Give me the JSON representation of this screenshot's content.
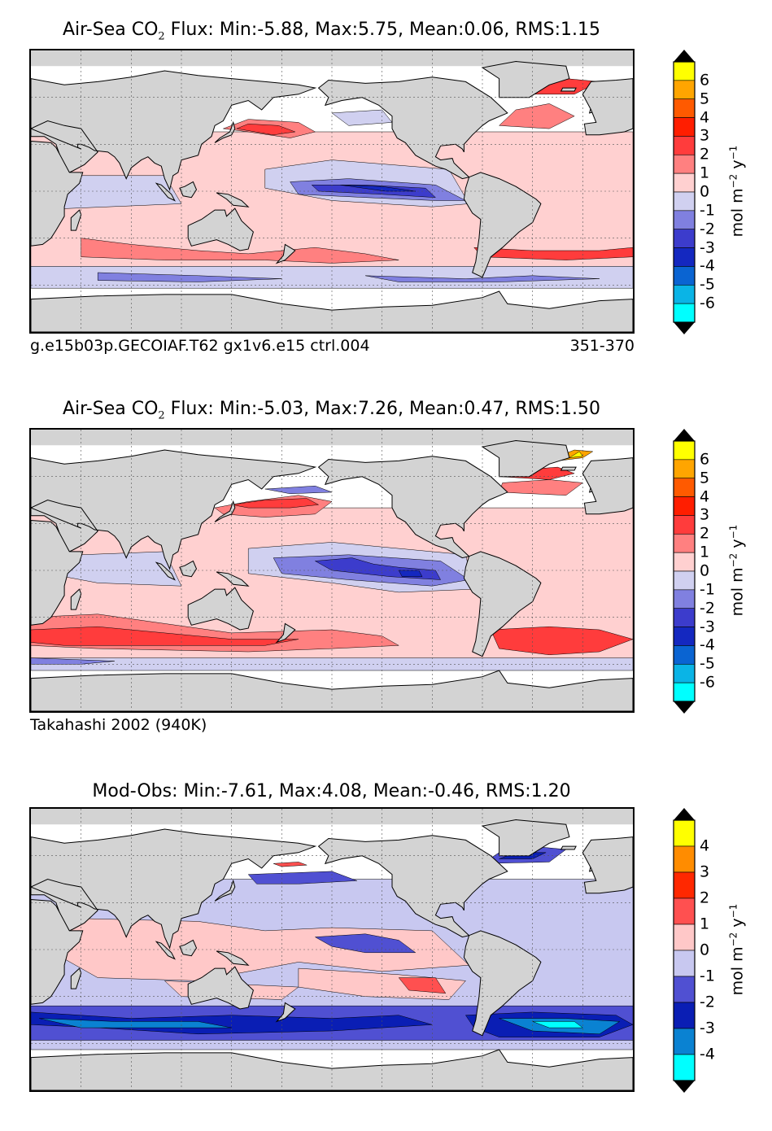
{
  "chart_data": [
    {
      "type": "heatmap",
      "title_prefix": "Air-Sea CO",
      "title_sub": "2",
      "title_suffix": " Flux: Min:-5.88, Max:5.75, Mean:0.06, RMS:1.15",
      "note_left": "g.e15b03p.GECOIAF.T62 gx1v6.e15 ctrl.004",
      "note_right": "351-370",
      "colorbar": {
        "ticks": [
          "6",
          "5",
          "4",
          "3",
          "2",
          "1",
          "0",
          "-1",
          "-2",
          "-3",
          "-4",
          "-5",
          "-6"
        ],
        "unit_base": "mol m",
        "unit_exp1": "−2",
        "unit_mid": " y",
        "unit_exp2": "−1",
        "levels_top_to_bottom": [
          "#ffff00",
          "#ffa500",
          "#ff5a00",
          "#ff1e00",
          "#ff3c3c",
          "#ff8080",
          "#ffd0d0",
          "#d0d0f0",
          "#8080e0",
          "#3c3ccc",
          "#1428c0",
          "#0a64d2",
          "#0ab4e6",
          "#00ffff"
        ]
      },
      "field": {
        "description_levels": [
          -6,
          -5,
          -4,
          -3,
          -2,
          -1,
          0,
          1,
          2,
          3,
          4,
          5,
          6
        ],
        "min": -5.88,
        "max": 5.75,
        "mean": 0.06,
        "rms": 1.15
      }
    },
    {
      "type": "heatmap",
      "title_prefix": "Air-Sea CO",
      "title_sub": "2",
      "title_suffix": " Flux: Min:-5.03, Max:7.26, Mean:0.47, RMS:1.50",
      "note_left": "Takahashi 2002 (940K)",
      "note_right": "",
      "colorbar": {
        "ticks": [
          "6",
          "5",
          "4",
          "3",
          "2",
          "1",
          "0",
          "-1",
          "-2",
          "-3",
          "-4",
          "-5",
          "-6"
        ],
        "unit_base": "mol m",
        "unit_exp1": "−2",
        "unit_mid": " y",
        "unit_exp2": "−1",
        "levels_top_to_bottom": [
          "#ffff00",
          "#ffa500",
          "#ff5a00",
          "#ff1e00",
          "#ff3c3c",
          "#ff8080",
          "#ffd0d0",
          "#d0d0f0",
          "#8080e0",
          "#3c3ccc",
          "#1428c0",
          "#0a64d2",
          "#0ab4e6",
          "#00ffff"
        ]
      },
      "field": {
        "min": -5.03,
        "max": 7.26,
        "mean": 0.47,
        "rms": 1.5
      }
    },
    {
      "type": "heatmap",
      "title_prefix": "Mod-Obs: Min:-7.61, Max:4.08, Mean:-0.46, RMS:1.20",
      "title_sub": "",
      "title_suffix": "",
      "note_left": "",
      "note_right": "",
      "colorbar": {
        "ticks": [
          "4",
          "3",
          "2",
          "1",
          "0",
          "-1",
          "-2",
          "-3",
          "-4"
        ],
        "unit_base": "mol m",
        "unit_exp1": "−2",
        "unit_mid": " y",
        "unit_exp2": "−1",
        "levels_top_to_bottom": [
          "#ffff00",
          "#ff8c00",
          "#ff2800",
          "#ff5050",
          "#ffc8c8",
          "#c8c8f0",
          "#5050d2",
          "#0a1eb4",
          "#0a82d2",
          "#00ffff"
        ]
      },
      "field": {
        "min": -7.61,
        "max": 4.08,
        "mean": -0.46,
        "rms": 1.2
      }
    }
  ]
}
